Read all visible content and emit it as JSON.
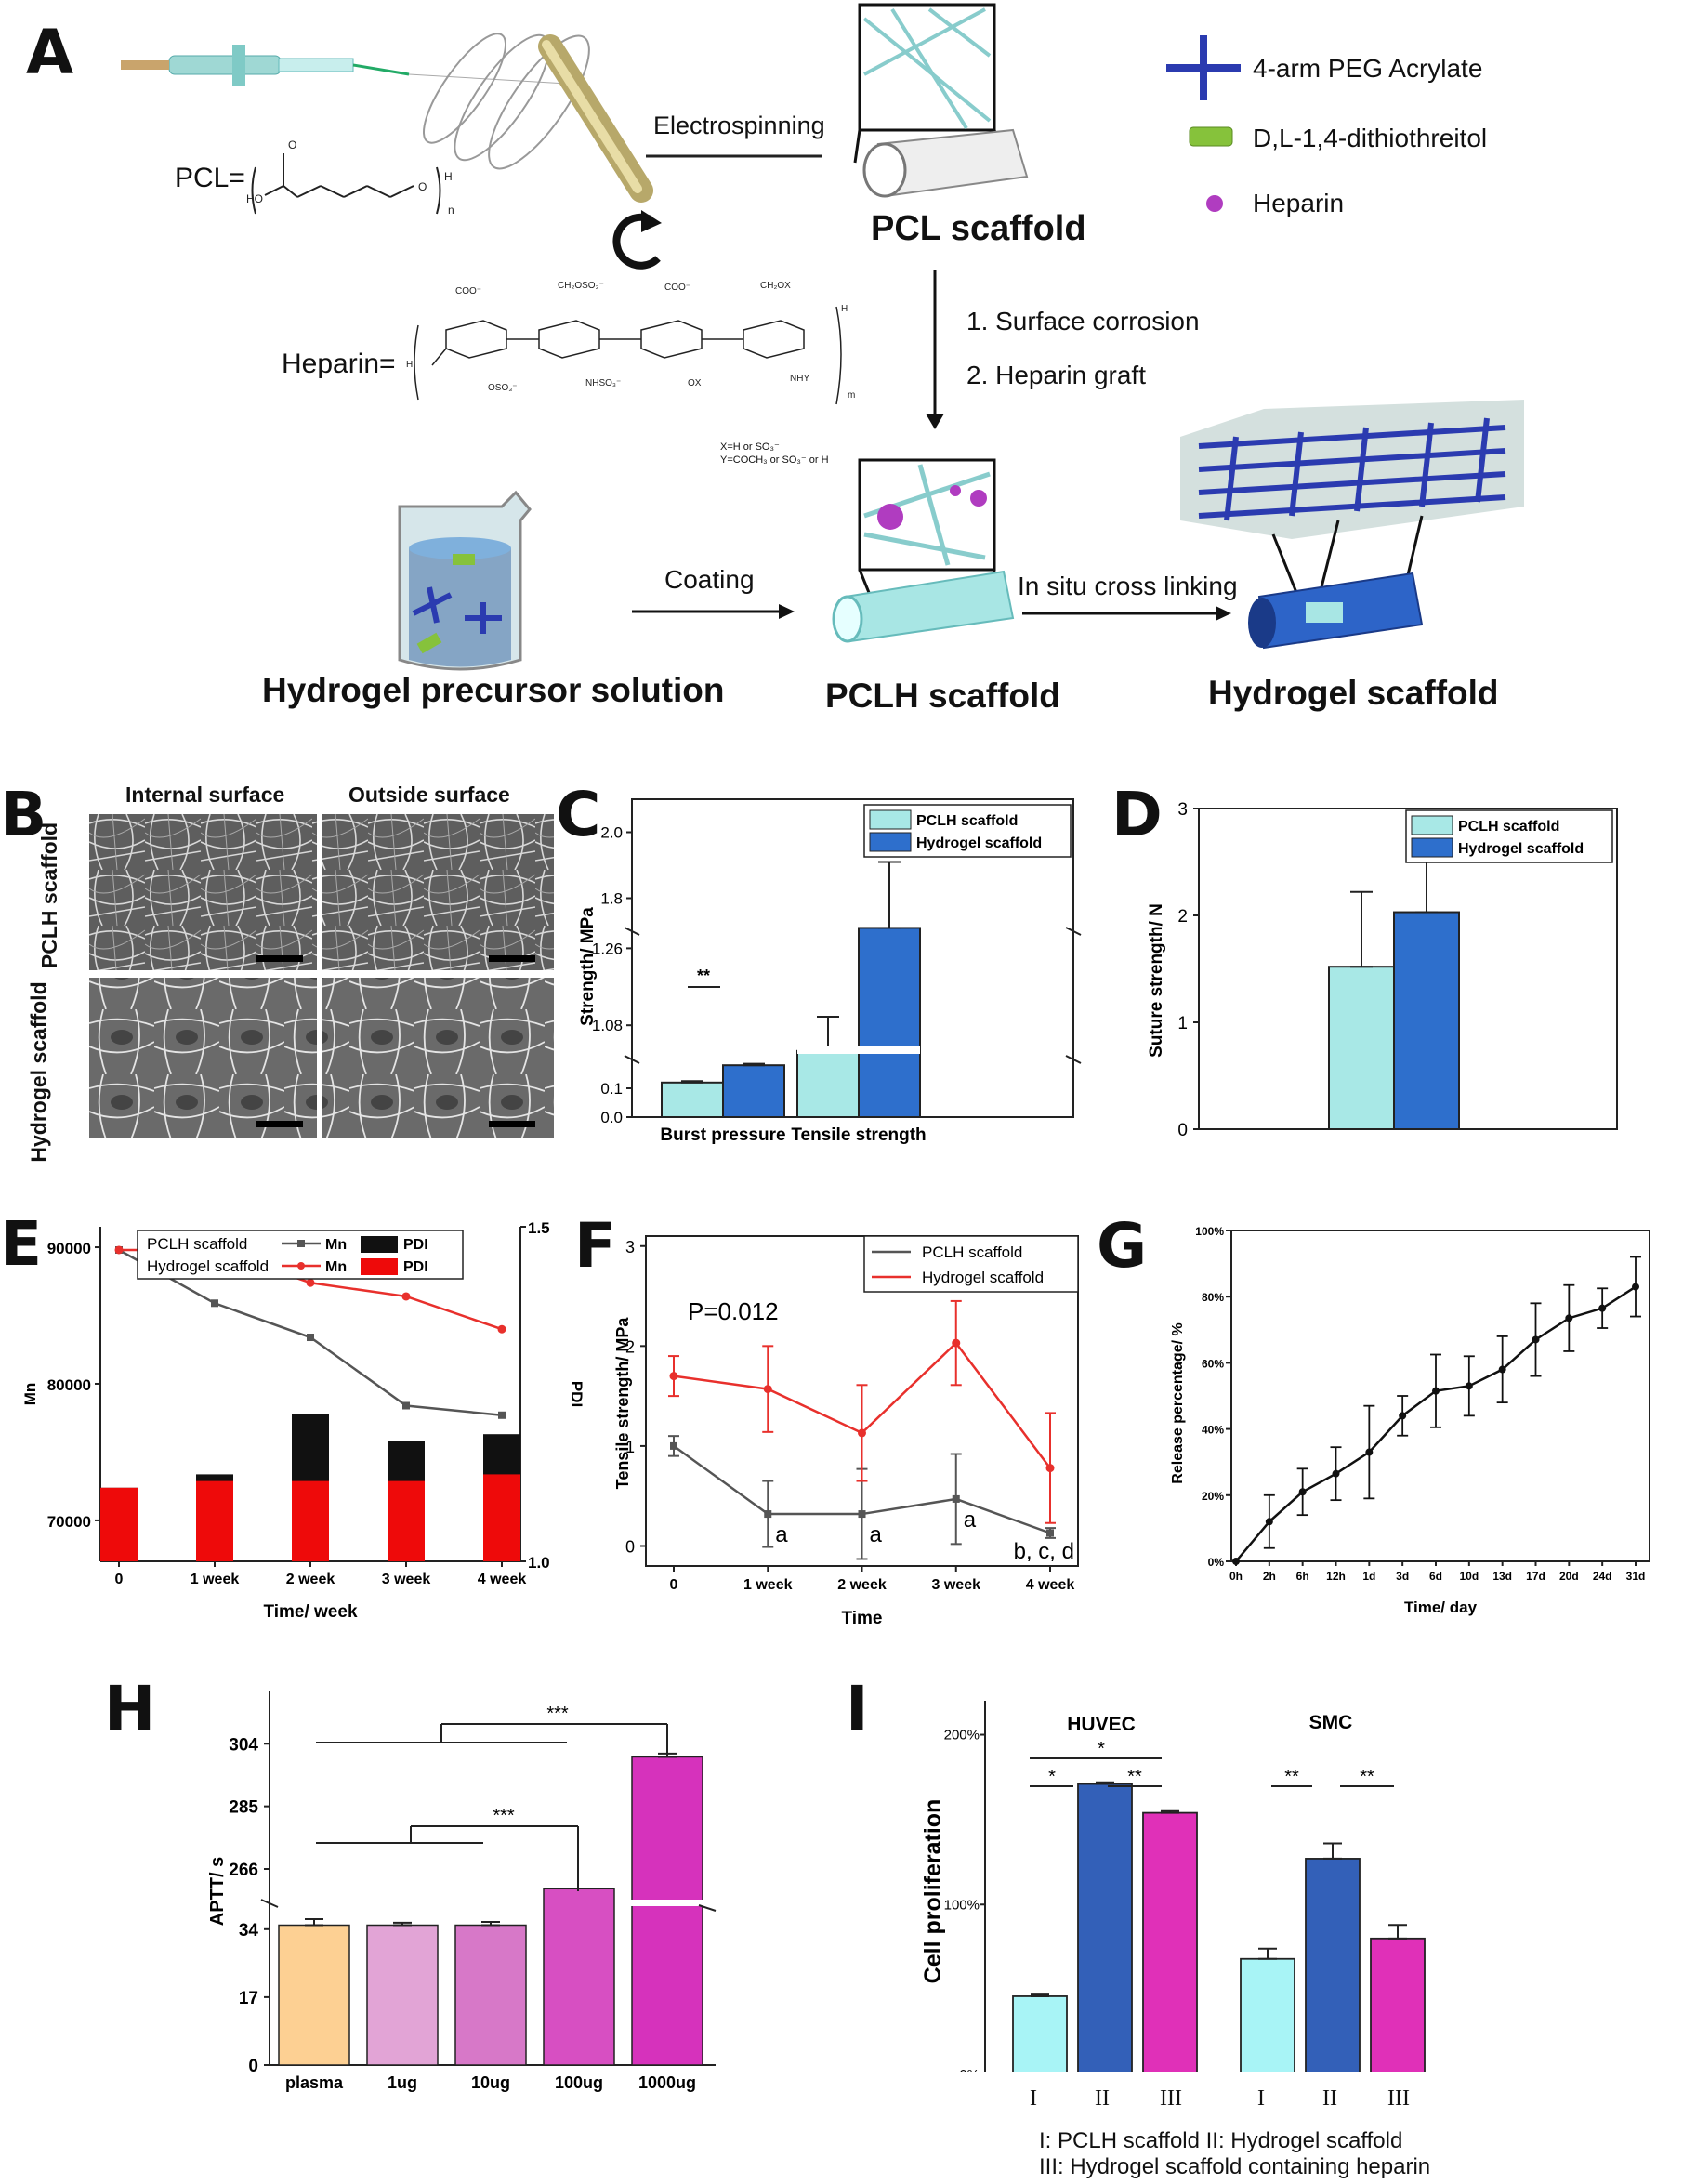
{
  "panels": {
    "A": "A",
    "B": "B",
    "C": "C",
    "D": "D",
    "E": "E",
    "F": "F",
    "G": "G",
    "H": "H",
    "I": "I"
  },
  "panelA": {
    "pcl_label": "PCL=",
    "heparin_label": "Heparin=",
    "electrospinning": "Electrospinning",
    "pcl_scaffold": "PCL scaffold",
    "step1": "1. Surface corrosion",
    "step2": "2. Heparin graft",
    "xy_note1": "X=H or SO₃⁻",
    "xy_note2": "Y=COCH₃ or SO₃⁻ or H",
    "coating": "Coating",
    "crosslinking": "In situ cross linking",
    "precursor": "Hydrogel precursor solution",
    "pclh_scaffold": "PCLH scaffold",
    "hydrogel_scaffold": "Hydrogel scaffold",
    "legend": [
      {
        "label": "4-arm PEG Acrylate",
        "icon": "peg-cross-icon",
        "color": "#2b3bb0"
      },
      {
        "label": "D,L-1,4-dithiothreitol",
        "icon": "dtt-cylinder-icon",
        "color": "#86c23b"
      },
      {
        "label": "Heparin",
        "icon": "heparin-sphere-icon",
        "color": "#b03cc0"
      }
    ]
  },
  "panelB": {
    "col1": "Internal surface",
    "col2": "Outside surface",
    "row1": "PCLH scaffold",
    "row2": "Hydrogel scaffold"
  },
  "colors": {
    "pclh": "#a8e8e6",
    "hydrogel": "#2e6fcc",
    "red_line": "#e8302c",
    "gray_line": "#555555",
    "pdi_black": "#111111",
    "pdi_red": "#ee0a0a"
  },
  "chart_data": [
    {
      "id": "C",
      "type": "bar",
      "categories": [
        "Burst pressure",
        "Tensile strength"
      ],
      "series": [
        {
          "name": "PCLH scaffold",
          "values": [
            0.12,
            1.02
          ],
          "errors": [
            0.005,
            0.08
          ]
        },
        {
          "name": "Hydrogel scaffold",
          "values": [
            0.18,
            1.71
          ],
          "errors": [
            0.005,
            0.2
          ]
        }
      ],
      "ylabel": "Strength/ MPa",
      "yticks": [
        "0.0",
        "0.1",
        "1.08",
        "1.26",
        "1.8",
        "2.0"
      ],
      "axis_break": true,
      "annotations": [
        "**"
      ]
    },
    {
      "id": "D",
      "type": "bar",
      "categories": [
        ""
      ],
      "series": [
        {
          "name": "PCLH scaffold",
          "values": [
            1.52
          ],
          "errors": [
            0.7
          ]
        },
        {
          "name": "Hydrogel scaffold",
          "values": [
            2.03
          ],
          "errors": [
            0.52
          ]
        }
      ],
      "ylabel": "Suture strength/ N",
      "ylim": [
        0,
        3
      ],
      "yticks": [
        "0",
        "1",
        "2",
        "3"
      ]
    },
    {
      "id": "E",
      "type": "line",
      "x": [
        "0",
        "1 week",
        "2 week",
        "3 week",
        "4 week"
      ],
      "series": [
        {
          "name": "PCLH scaffold Mn",
          "values": [
            89800,
            85900,
            83400,
            78400,
            77700
          ]
        },
        {
          "name": "Hydrogel scaffold Mn",
          "values": [
            89800,
            89800,
            87400,
            86400,
            84000
          ]
        }
      ],
      "bars": [
        {
          "name": "PCLH scaffold PDI",
          "values": [
            1.11,
            1.13,
            1.22,
            1.18,
            1.19
          ]
        },
        {
          "name": "Hydrogel scaffold PDI",
          "values": [
            1.11,
            1.12,
            1.12,
            1.12,
            1.13
          ]
        }
      ],
      "xlabel": "Time/ week",
      "ylabel": "Mn",
      "y2label": "PDI",
      "yticks": [
        "70000",
        "80000",
        "90000"
      ],
      "y2ticks": [
        "1.0",
        "1.5"
      ],
      "ylim": [
        67000,
        91500
      ],
      "y2lim": [
        1.0,
        1.5
      ],
      "legend_header": [
        "Mn",
        "PDI"
      ]
    },
    {
      "id": "F",
      "type": "line",
      "x": [
        "0",
        "1 week",
        "2 week",
        "3 week",
        "4 week"
      ],
      "series": [
        {
          "name": "PCLH scaffold",
          "values": [
            1.0,
            0.32,
            0.32,
            0.47,
            0.13
          ],
          "errors": [
            0.1,
            0.33,
            0.45,
            0.45,
            0.05
          ]
        },
        {
          "name": "Hydrogel scaffold",
          "values": [
            1.7,
            1.57,
            1.13,
            2.03,
            0.78
          ],
          "errors": [
            0.2,
            0.43,
            0.48,
            0.42,
            0.55
          ]
        }
      ],
      "xlabel": "Time",
      "ylabel": "Tensile strength/ MPa",
      "ylim": [
        -0.2,
        3.1
      ],
      "yticks": [
        "0",
        "1",
        "2",
        "3"
      ],
      "annotations": [
        "P=0.012",
        "a",
        "a",
        "a",
        "b, c, d"
      ]
    },
    {
      "id": "G",
      "type": "line",
      "x": [
        "0h",
        "2h",
        "6h",
        "12h",
        "1d",
        "3d",
        "6d",
        "10d",
        "13d",
        "17d",
        "20d",
        "24d",
        "31d"
      ],
      "series": [
        {
          "name": "",
          "values": [
            0,
            12,
            21,
            26.5,
            33,
            44,
            51.5,
            53,
            58,
            67,
            73.5,
            76.5,
            83
          ],
          "errors": [
            0,
            8,
            7,
            8,
            14,
            6,
            11,
            9,
            10,
            11,
            10,
            6,
            9
          ]
        }
      ],
      "xlabel": "Time/ day",
      "ylabel": "Release percentage/ %",
      "ylim": [
        0,
        100
      ],
      "yticks": [
        "0%",
        "20%",
        "40%",
        "60%",
        "80%",
        "100%"
      ]
    },
    {
      "id": "H",
      "type": "bar",
      "categories": [
        "plasma",
        "1ug",
        "10ug",
        "100ug",
        "1000ug"
      ],
      "values": [
        35,
        35,
        35,
        260,
        300
      ],
      "errors": [
        1.5,
        0.6,
        0.8,
        0,
        1
      ],
      "colors": [
        "#fdd093",
        "#e2a4d6",
        "#d778c8",
        "#d74fc2",
        "#d632bc"
      ],
      "ylabel": "APTT/ s",
      "yticks": [
        "0",
        "17",
        "34",
        "266",
        "285",
        "304"
      ],
      "axis_break": true,
      "annotations": [
        "***",
        "***"
      ]
    },
    {
      "id": "I",
      "type": "bar",
      "groups": [
        "HUVEC",
        "SMC"
      ],
      "categories": [
        "I",
        "II",
        "III",
        "I",
        "II",
        "III"
      ],
      "values": [
        46,
        171,
        154,
        68,
        127,
        80
      ],
      "errors": [
        1,
        1,
        1,
        6,
        9,
        8
      ],
      "colors": [
        "#a8f4f6",
        "#3360b8",
        "#e030b8",
        "#a8f4f6",
        "#3360b8",
        "#e030b8"
      ],
      "ylabel": "Cell proliferation",
      "ylim": [
        0,
        220
      ],
      "yticks": [
        "0%",
        "100%",
        "200%"
      ],
      "annotations": [
        "*",
        "*",
        "**",
        "**",
        "**"
      ],
      "caption_line1": "I:   PCLH scaffold    II:   Hydrogel scaffold",
      "caption_line2": "III:   Hydrogel scaffold containing heparin"
    }
  ]
}
